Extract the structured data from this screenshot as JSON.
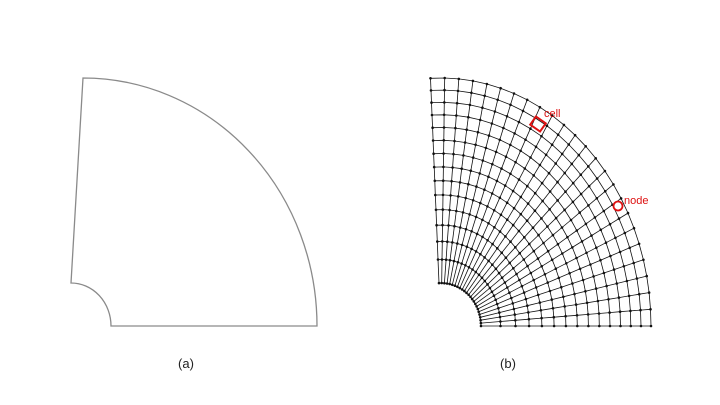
{
  "panels": {
    "a": {
      "caption": "(a)"
    },
    "b": {
      "caption": "(b)",
      "annotations": {
        "cell_label": "cell",
        "node_label": "node"
      },
      "mesh": {
        "radial_divisions": 14,
        "angular_divisions": 24
      }
    }
  },
  "colors": {
    "outline": "#8a8a8a",
    "mesh": "#111111",
    "highlight": "#dd1111"
  }
}
